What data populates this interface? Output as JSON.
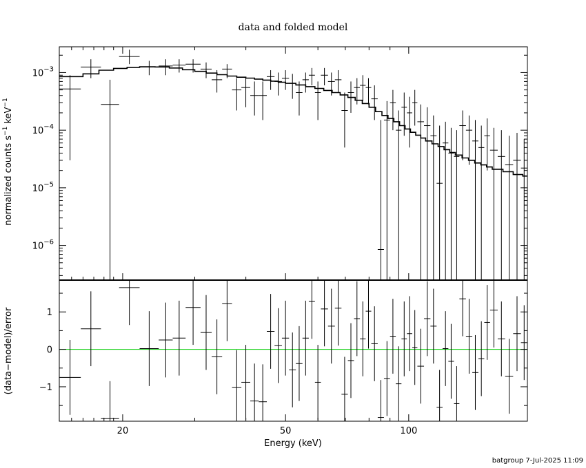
{
  "chart_data": {
    "type": "scatter",
    "title": "data and folded model",
    "xlabel": "Energy (keV)",
    "x_scale": "log",
    "xlim": [
      14,
      195
    ],
    "x_ticks": [
      {
        "value": 20,
        "label": "20"
      },
      {
        "value": 50,
        "label": "50"
      },
      {
        "value": 100,
        "label": "100"
      }
    ],
    "footer": "batgroup   7-Jul-2025 11:09",
    "colors": {
      "axes": "#000000",
      "data": "#000000",
      "model": "#000000",
      "zero_line": "#00cc00"
    },
    "top_panel": {
      "ylabel_main": "normalized counts s",
      "ylabel_exp1": "−1",
      "ylabel_mid": " keV",
      "ylabel_exp2": "−1",
      "y_scale": "log",
      "ylim": [
        2.5e-07,
        0.0028
      ],
      "y_ticks": [
        {
          "value": 0.001,
          "base": "10",
          "exp": "−3"
        },
        {
          "value": 0.0001,
          "base": "10",
          "exp": "−4"
        },
        {
          "value": 1e-05,
          "base": "10",
          "exp": "−5"
        },
        {
          "value": 1e-06,
          "base": "10",
          "exp": "−6"
        }
      ],
      "model_step": [
        [
          14,
          0.00085
        ],
        [
          16,
          0.00095
        ],
        [
          17.5,
          0.0011
        ],
        [
          19,
          0.00118
        ],
        [
          20.5,
          0.00123
        ],
        [
          22,
          0.00126
        ],
        [
          24,
          0.00125
        ],
        [
          26,
          0.0012
        ],
        [
          28,
          0.00112
        ],
        [
          30,
          0.00105
        ],
        [
          32,
          0.00098
        ],
        [
          34,
          0.00092
        ],
        [
          36,
          0.00087
        ],
        [
          38,
          0.00083
        ],
        [
          40,
          0.0008
        ],
        [
          42,
          0.00077
        ],
        [
          44,
          0.00074
        ],
        [
          46,
          0.00071
        ],
        [
          48,
          0.00068
        ],
        [
          50,
          0.00065
        ],
        [
          53,
          0.00061
        ],
        [
          56,
          0.00057
        ],
        [
          59,
          0.00053
        ],
        [
          62,
          0.00049
        ],
        [
          65,
          0.00045
        ],
        [
          68,
          0.00041
        ],
        [
          71,
          0.00037
        ],
        [
          74,
          0.00033
        ],
        [
          77,
          0.00029
        ],
        [
          80,
          0.00025
        ],
        [
          83,
          0.00021
        ],
        [
          86,
          0.00018
        ],
        [
          89,
          0.00016
        ],
        [
          92,
          0.00014
        ],
        [
          95,
          0.00012
        ],
        [
          98,
          0.000105
        ],
        [
          101,
          9.2e-05
        ],
        [
          104,
          8.2e-05
        ],
        [
          107,
          7.3e-05
        ],
        [
          110,
          6.5e-05
        ],
        [
          114,
          5.8e-05
        ],
        [
          118,
          5.2e-05
        ],
        [
          122,
          4.6e-05
        ],
        [
          126,
          4.1e-05
        ],
        [
          130,
          3.7e-05
        ],
        [
          135,
          3.3e-05
        ],
        [
          140,
          3e-05
        ],
        [
          145,
          2.7e-05
        ],
        [
          150,
          2.5e-05
        ],
        [
          155,
          2.3e-05
        ],
        [
          160,
          2.1e-05
        ],
        [
          170,
          1.9e-05
        ],
        [
          180,
          1.7e-05
        ],
        [
          190,
          1.6e-05
        ]
      ],
      "points": [
        {
          "x0": 14.0,
          "x1": 15.8,
          "y": 0.00052,
          "ylo": 3e-05,
          "yhi": 0.0009
        },
        {
          "x0": 15.8,
          "x1": 17.7,
          "y": 0.00125,
          "ylo": 0.0008,
          "yhi": 0.0017
        },
        {
          "x0": 17.7,
          "x1": 19.6,
          "y": 0.00028,
          "ylo": 2.5e-07,
          "yhi": 0.00075
        },
        {
          "x0": 19.6,
          "x1": 22.0,
          "y": 0.0019,
          "ylo": 0.0014,
          "yhi": 0.0025
        },
        {
          "x0": 22.0,
          "x1": 24.5,
          "y": 0.00125,
          "ylo": 0.0009,
          "yhi": 0.0016
        },
        {
          "x0": 24.5,
          "x1": 26.5,
          "y": 0.0013,
          "ylo": 0.0009,
          "yhi": 0.0017
        },
        {
          "x0": 26.5,
          "x1": 28.5,
          "y": 0.00135,
          "ylo": 0.001,
          "yhi": 0.0017
        },
        {
          "x0": 28.5,
          "x1": 31.0,
          "y": 0.0014,
          "ylo": 0.001,
          "yhi": 0.0017
        },
        {
          "x0": 31.0,
          "x1": 33.0,
          "y": 0.00115,
          "ylo": 0.0008,
          "yhi": 0.0015
        },
        {
          "x0": 33.0,
          "x1": 35.0,
          "y": 0.00075,
          "ylo": 0.00045,
          "yhi": 0.0011
        },
        {
          "x0": 35.0,
          "x1": 37.0,
          "y": 0.00115,
          "ylo": 0.0008,
          "yhi": 0.0014
        },
        {
          "x0": 37.0,
          "x1": 39.0,
          "y": 0.0005,
          "ylo": 0.00022,
          "yhi": 0.0008
        },
        {
          "x0": 39.0,
          "x1": 41.0,
          "y": 0.00055,
          "ylo": 0.00025,
          "yhi": 0.0008
        },
        {
          "x0": 41.0,
          "x1": 43.0,
          "y": 0.0004,
          "ylo": 0.00018,
          "yhi": 0.0007
        },
        {
          "x0": 43.0,
          "x1": 45.0,
          "y": 0.0004,
          "ylo": 0.00015,
          "yhi": 0.0007
        },
        {
          "x0": 45.0,
          "x1": 47.0,
          "y": 0.00085,
          "ylo": 0.0005,
          "yhi": 0.0011
        },
        {
          "x0": 47.0,
          "x1": 49.0,
          "y": 0.0007,
          "ylo": 0.0004,
          "yhi": 0.001
        },
        {
          "x0": 49.0,
          "x1": 51.0,
          "y": 0.0008,
          "ylo": 0.0005,
          "yhi": 0.0011
        },
        {
          "x0": 51.0,
          "x1": 53.0,
          "y": 0.00065,
          "ylo": 0.00035,
          "yhi": 0.00095
        },
        {
          "x0": 53.0,
          "x1": 55.0,
          "y": 0.00045,
          "ylo": 0.00018,
          "yhi": 0.0007
        },
        {
          "x0": 55.0,
          "x1": 57.0,
          "y": 0.00075,
          "ylo": 0.00045,
          "yhi": 0.001
        },
        {
          "x0": 57.0,
          "x1": 59.0,
          "y": 0.0009,
          "ylo": 0.0006,
          "yhi": 0.0012
        },
        {
          "x0": 59.0,
          "x1": 61.0,
          "y": 0.00045,
          "ylo": 0.00015,
          "yhi": 0.0007
        },
        {
          "x0": 61.0,
          "x1": 63.5,
          "y": 0.0009,
          "ylo": 0.0006,
          "yhi": 0.0012
        },
        {
          "x0": 63.5,
          "x1": 66.0,
          "y": 0.0007,
          "ylo": 0.0004,
          "yhi": 0.001
        },
        {
          "x0": 66.0,
          "x1": 68.5,
          "y": 0.00075,
          "ylo": 0.00045,
          "yhi": 0.0011
        },
        {
          "x0": 68.5,
          "x1": 71.0,
          "y": 0.00022,
          "ylo": 5e-05,
          "yhi": 0.00045
        },
        {
          "x0": 71.0,
          "x1": 73.5,
          "y": 0.00045,
          "ylo": 0.0002,
          "yhi": 0.0007
        },
        {
          "x0": 73.5,
          "x1": 76.0,
          "y": 0.00055,
          "ylo": 0.00028,
          "yhi": 0.0008
        },
        {
          "x0": 76.0,
          "x1": 78.5,
          "y": 0.0006,
          "ylo": 0.00032,
          "yhi": 0.0009
        },
        {
          "x0": 78.5,
          "x1": 81.0,
          "y": 0.00055,
          "ylo": 0.00028,
          "yhi": 0.0008
        },
        {
          "x0": 81.0,
          "x1": 84.0,
          "y": 0.00035,
          "ylo": 0.00015,
          "yhi": 0.0006
        },
        {
          "x0": 84.0,
          "x1": 87.0,
          "y": 8.5e-07,
          "ylo": 2.5e-07,
          "yhi": 0.00015
        },
        {
          "x0": 87.0,
          "x1": 90.0,
          "y": 0.00015,
          "ylo": 2.5e-07,
          "yhi": 0.00032
        },
        {
          "x0": 90.0,
          "x1": 93.0,
          "y": 0.0003,
          "ylo": 0.0001,
          "yhi": 0.0005
        },
        {
          "x0": 93.0,
          "x1": 96.0,
          "y": 0.0001,
          "ylo": 2.5e-07,
          "yhi": 0.00022
        },
        {
          "x0": 96.0,
          "x1": 99.0,
          "y": 0.00025,
          "ylo": 8e-05,
          "yhi": 0.00045
        },
        {
          "x0": 99.0,
          "x1": 102.0,
          "y": 0.0002,
          "ylo": 5e-05,
          "yhi": 0.00038
        },
        {
          "x0": 102.0,
          "x1": 105.0,
          "y": 0.0003,
          "ylo": 0.00012,
          "yhi": 0.0005
        },
        {
          "x0": 105.0,
          "x1": 109.0,
          "y": 0.00014,
          "ylo": 2.5e-07,
          "yhi": 0.00028
        },
        {
          "x0": 109.0,
          "x1": 113.0,
          "y": 0.00012,
          "ylo": 2.5e-07,
          "yhi": 0.00025
        },
        {
          "x0": 113.0,
          "x1": 117.0,
          "y": 8e-05,
          "ylo": 2.5e-07,
          "yhi": 0.00018
        },
        {
          "x0": 117.0,
          "x1": 121.0,
          "y": 1.2e-05,
          "ylo": 2.5e-07,
          "yhi": 0.00012
        },
        {
          "x0": 121.0,
          "x1": 125.0,
          "y": 6e-05,
          "ylo": 2.5e-07,
          "yhi": 0.00014
        },
        {
          "x0": 125.0,
          "x1": 129.0,
          "y": 4e-05,
          "ylo": 2.5e-07,
          "yhi": 0.00011
        },
        {
          "x0": 129.0,
          "x1": 133.0,
          "y": 3.5e-05,
          "ylo": 2.5e-07,
          "yhi": 0.0001
        },
        {
          "x0": 133.0,
          "x1": 138.0,
          "y": 0.00012,
          "ylo": 3e-05,
          "yhi": 0.00022
        },
        {
          "x0": 138.0,
          "x1": 143.0,
          "y": 0.0001,
          "ylo": 2.5e-05,
          "yhi": 0.00018
        },
        {
          "x0": 143.0,
          "x1": 148.0,
          "y": 6.5e-05,
          "ylo": 2.5e-07,
          "yhi": 0.00015
        },
        {
          "x0": 148.0,
          "x1": 153.0,
          "y": 5e-05,
          "ylo": 2.5e-07,
          "yhi": 0.00012
        },
        {
          "x0": 153.0,
          "x1": 158.0,
          "y": 8e-05,
          "ylo": 2e-05,
          "yhi": 0.00016
        },
        {
          "x0": 158.0,
          "x1": 165.0,
          "y": 4.5e-05,
          "ylo": 2.5e-07,
          "yhi": 0.00011
        },
        {
          "x0": 165.0,
          "x1": 172.0,
          "y": 3.5e-05,
          "ylo": 2.5e-07,
          "yhi": 0.0001
        },
        {
          "x0": 172.0,
          "x1": 180.0,
          "y": 2.5e-05,
          "ylo": 2.5e-07,
          "yhi": 8e-05
        },
        {
          "x0": 180.0,
          "x1": 188.0,
          "y": 3e-05,
          "ylo": 2.5e-07,
          "yhi": 9e-05
        },
        {
          "x0": 188.0,
          "x1": 195.0,
          "y": 2.2e-05,
          "ylo": 2.5e-07,
          "yhi": 7e-05
        }
      ]
    },
    "bottom_panel": {
      "ylabel": "(data−model)/error",
      "y_scale": "linear",
      "ylim": [
        -1.92,
        1.85
      ],
      "y_ticks": [
        {
          "value": 1,
          "label": "1"
        },
        {
          "value": 0,
          "label": "0"
        },
        {
          "value": -1,
          "label": "−1"
        }
      ],
      "zero_line": 0,
      "points": [
        {
          "x0": 14.0,
          "x1": 15.8,
          "y": -0.75,
          "err": 1.0
        },
        {
          "x0": 15.8,
          "x1": 17.7,
          "y": 0.55,
          "err": 1.0
        },
        {
          "x0": 17.7,
          "x1": 19.6,
          "y": -1.85,
          "err": 1.0
        },
        {
          "x0": 19.6,
          "x1": 22.0,
          "y": 1.65,
          "err": 1.0
        },
        {
          "x0": 22.0,
          "x1": 24.5,
          "y": 0.02,
          "err": 1.0
        },
        {
          "x0": 24.5,
          "x1": 26.5,
          "y": 0.25,
          "err": 1.0
        },
        {
          "x0": 26.5,
          "x1": 28.5,
          "y": 0.3,
          "err": 1.0
        },
        {
          "x0": 28.5,
          "x1": 31.0,
          "y": 1.12,
          "err": 1.0
        },
        {
          "x0": 31.0,
          "x1": 33.0,
          "y": 0.45,
          "err": 1.0
        },
        {
          "x0": 33.0,
          "x1": 35.0,
          "y": -0.2,
          "err": 1.0
        },
        {
          "x0": 35.0,
          "x1": 37.0,
          "y": 1.22,
          "err": 1.0
        },
        {
          "x0": 37.0,
          "x1": 39.0,
          "y": -1.02,
          "err": 1.0
        },
        {
          "x0": 39.0,
          "x1": 41.0,
          "y": -0.88,
          "err": 1.0
        },
        {
          "x0": 41.0,
          "x1": 43.0,
          "y": -1.38,
          "err": 1.0
        },
        {
          "x0": 43.0,
          "x1": 45.0,
          "y": -1.4,
          "err": 1.0
        },
        {
          "x0": 45.0,
          "x1": 47.0,
          "y": 0.48,
          "err": 1.0
        },
        {
          "x0": 47.0,
          "x1": 49.0,
          "y": 0.1,
          "err": 1.0
        },
        {
          "x0": 49.0,
          "x1": 51.0,
          "y": 0.3,
          "err": 1.0
        },
        {
          "x0": 51.0,
          "x1": 53.0,
          "y": -0.55,
          "err": 1.0
        },
        {
          "x0": 53.0,
          "x1": 55.0,
          "y": -0.38,
          "err": 1.0
        },
        {
          "x0": 55.0,
          "x1": 57.0,
          "y": 0.3,
          "err": 1.0
        },
        {
          "x0": 57.0,
          "x1": 59.0,
          "y": 1.28,
          "err": 1.0
        },
        {
          "x0": 59.0,
          "x1": 61.0,
          "y": -0.88,
          "err": 1.0
        },
        {
          "x0": 61.0,
          "x1": 63.5,
          "y": 1.08,
          "err": 1.0
        },
        {
          "x0": 63.5,
          "x1": 66.0,
          "y": 0.62,
          "err": 1.0
        },
        {
          "x0": 66.0,
          "x1": 68.5,
          "y": 1.1,
          "err": 1.0
        },
        {
          "x0": 68.5,
          "x1": 71.0,
          "y": -1.2,
          "err": 1.0
        },
        {
          "x0": 71.0,
          "x1": 73.5,
          "y": -0.3,
          "err": 1.0
        },
        {
          "x0": 73.5,
          "x1": 76.0,
          "y": 0.82,
          "err": 1.0
        },
        {
          "x0": 76.0,
          "x1": 78.5,
          "y": 0.28,
          "err": 1.0
        },
        {
          "x0": 78.5,
          "x1": 81.0,
          "y": 1.02,
          "err": 1.0
        },
        {
          "x0": 81.0,
          "x1": 84.0,
          "y": 0.15,
          "err": 1.0
        },
        {
          "x0": 84.0,
          "x1": 87.0,
          "y": -1.82,
          "err": 1.0
        },
        {
          "x0": 87.0,
          "x1": 90.0,
          "y": -0.78,
          "err": 1.0
        },
        {
          "x0": 90.0,
          "x1": 93.0,
          "y": 0.35,
          "err": 1.0
        },
        {
          "x0": 93.0,
          "x1": 96.0,
          "y": -0.92,
          "err": 1.0
        },
        {
          "x0": 96.0,
          "x1": 99.0,
          "y": 0.28,
          "err": 1.0
        },
        {
          "x0": 99.0,
          "x1": 102.0,
          "y": 0.42,
          "err": 1.0
        },
        {
          "x0": 102.0,
          "x1": 105.0,
          "y": 0.05,
          "err": 1.0
        },
        {
          "x0": 105.0,
          "x1": 109.0,
          "y": -0.45,
          "err": 1.0
        },
        {
          "x0": 109.0,
          "x1": 113.0,
          "y": 0.82,
          "err": 1.0
        },
        {
          "x0": 113.0,
          "x1": 117.0,
          "y": 0.62,
          "err": 1.0
        },
        {
          "x0": 117.0,
          "x1": 121.0,
          "y": -1.55,
          "err": 1.0
        },
        {
          "x0": 121.0,
          "x1": 125.0,
          "y": 0.02,
          "err": 1.0
        },
        {
          "x0": 125.0,
          "x1": 129.0,
          "y": -0.32,
          "err": 1.0
        },
        {
          "x0": 129.0,
          "x1": 133.0,
          "y": -1.45,
          "err": 1.0
        },
        {
          "x0": 133.0,
          "x1": 138.0,
          "y": 1.35,
          "err": 1.0
        },
        {
          "x0": 138.0,
          "x1": 143.0,
          "y": 0.35,
          "err": 1.0
        },
        {
          "x0": 143.0,
          "x1": 148.0,
          "y": -0.62,
          "err": 1.0
        },
        {
          "x0": 148.0,
          "x1": 153.0,
          "y": -0.25,
          "err": 1.0
        },
        {
          "x0": 153.0,
          "x1": 158.0,
          "y": 0.72,
          "err": 1.0
        },
        {
          "x0": 158.0,
          "x1": 165.0,
          "y": 1.05,
          "err": 1.0
        },
        {
          "x0": 165.0,
          "x1": 172.0,
          "y": 0.28,
          "err": 1.0
        },
        {
          "x0": 172.0,
          "x1": 180.0,
          "y": -0.72,
          "err": 1.0
        },
        {
          "x0": 180.0,
          "x1": 188.0,
          "y": 0.42,
          "err": 1.0
        },
        {
          "x0": 188.0,
          "x1": 195.0,
          "y": 0.18,
          "err": 1.0
        }
      ]
    }
  }
}
